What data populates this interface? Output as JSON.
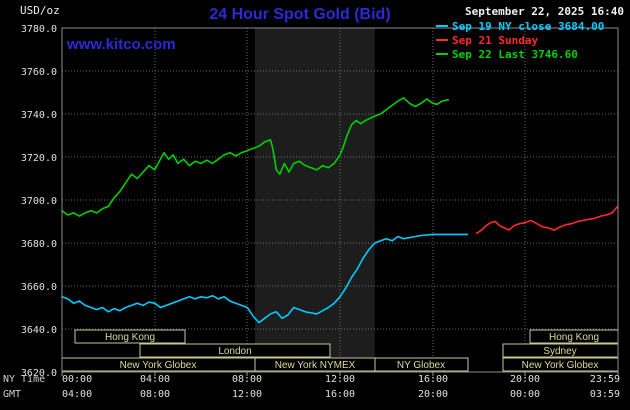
{
  "header": {
    "units_label": "USD/oz",
    "title": "24 Hour Spot Gold (Bid)",
    "datetime": "September 22, 2025 16:40",
    "watermark": "www.kitco.com"
  },
  "legend": [
    {
      "label": "Sep 19 NY close 3684.00",
      "color": "#00ccff"
    },
    {
      "label": "Sep 21 Sunday",
      "color": "#ff2a2a"
    },
    {
      "label": "Sep 22 Last 3746.60",
      "color": "#00d000"
    }
  ],
  "axes": {
    "y_labels": [
      "3780.0",
      "3760.0",
      "3740.0",
      "3720.0",
      "3700.0",
      "3680.0",
      "3660.0",
      "3640.0",
      "3620.0"
    ],
    "x_ny_labels": [
      "00:00",
      "04:00",
      "08:00",
      "12:00",
      "16:00",
      "20:00",
      "23:59"
    ],
    "x_gmt_labels": [
      "04:00",
      "08:00",
      "12:00",
      "16:00",
      "20:00",
      "00:00",
      "03:59"
    ],
    "ny_row_label": "NY Time",
    "gmt_row_label": "GMT"
  },
  "sessions": [
    {
      "label": "Hong Kong"
    },
    {
      "label": "Hong Kong"
    },
    {
      "label": "London"
    },
    {
      "label": "Sydney"
    },
    {
      "label": "New York Globex"
    },
    {
      "label": "New York NYMEX"
    },
    {
      "label": "NY Globex"
    },
    {
      "label": "New York Globex"
    }
  ],
  "chart_data": {
    "type": "line",
    "title": "24 Hour Spot Gold (Bid)",
    "ylabel": "USD/oz",
    "x_unit": "hours NY time",
    "x_range": [
      0,
      24
    ],
    "ylim": [
      3620,
      3780
    ],
    "y_tick_step": 20,
    "grid": true,
    "legend_position": "top-right",
    "highlight_band_hours": [
      8.33,
      13.5
    ],
    "series": [
      {
        "name": "Sep 19 NY close 3684.00",
        "color": "#00ccff",
        "x": [
          0,
          0.25,
          0.5,
          0.75,
          1,
          1.25,
          1.5,
          1.75,
          2,
          2.25,
          2.5,
          2.75,
          3,
          3.25,
          3.5,
          3.75,
          4,
          4.25,
          4.5,
          4.75,
          5,
          5.25,
          5.5,
          5.75,
          6,
          6.25,
          6.5,
          6.75,
          7,
          7.25,
          7.5,
          7.75,
          8,
          8.25,
          8.5,
          8.75,
          9,
          9.25,
          9.5,
          9.75,
          10,
          10.25,
          10.5,
          10.75,
          11,
          11.25,
          11.5,
          11.75,
          12,
          12.25,
          12.5,
          12.75,
          13,
          13.25,
          13.5,
          13.75,
          14,
          14.25,
          14.5,
          14.75,
          15,
          15.25,
          15.5,
          16,
          16.5,
          17,
          17.5
        ],
        "values": [
          3655,
          3654,
          3652,
          3653,
          3651,
          3650,
          3649,
          3650,
          3648,
          3649.5,
          3648.5,
          3650,
          3651,
          3652,
          3651,
          3652.5,
          3652,
          3650,
          3651,
          3652,
          3653,
          3654,
          3655,
          3654,
          3655,
          3654.5,
          3655.5,
          3654,
          3655,
          3653,
          3652,
          3651,
          3650,
          3646,
          3643,
          3645,
          3647,
          3648,
          3645,
          3646.5,
          3650,
          3649,
          3648,
          3647.5,
          3647,
          3648.5,
          3650,
          3652,
          3655,
          3659,
          3664,
          3668,
          3673,
          3677,
          3680,
          3681,
          3682,
          3681,
          3683,
          3682,
          3682.5,
          3683,
          3683.5,
          3684,
          3684,
          3684,
          3684
        ]
      },
      {
        "name": "Sep 21 Sunday",
        "color": "#ff2a2a",
        "x": [
          17.9,
          18.1,
          18.3,
          18.5,
          18.7,
          18.9,
          19.1,
          19.3,
          19.5,
          19.75,
          20,
          20.25,
          20.5,
          20.75,
          21,
          21.25,
          21.5,
          21.75,
          22,
          22.25,
          22.5,
          22.75,
          23,
          23.25,
          23.5,
          23.75,
          23.98
        ],
        "values": [
          3684.5,
          3686,
          3688,
          3689.5,
          3690,
          3688,
          3687,
          3686,
          3688,
          3689,
          3689.5,
          3690.5,
          3689,
          3687.5,
          3687,
          3686,
          3687.5,
          3688.5,
          3689,
          3690,
          3690.5,
          3691,
          3691.5,
          3692.5,
          3693,
          3694,
          3697
        ]
      },
      {
        "name": "Sep 22 Last 3746.60",
        "color": "#00d000",
        "x": [
          0,
          0.25,
          0.5,
          0.75,
          1,
          1.25,
          1.5,
          1.75,
          2,
          2.25,
          2.5,
          2.75,
          3,
          3.25,
          3.5,
          3.75,
          4,
          4.2,
          4.4,
          4.6,
          4.8,
          5,
          5.25,
          5.5,
          5.75,
          6,
          6.25,
          6.5,
          6.75,
          7,
          7.25,
          7.5,
          7.75,
          8,
          8.25,
          8.5,
          8.75,
          9,
          9.1,
          9.25,
          9.4,
          9.6,
          9.8,
          10,
          10.25,
          10.5,
          10.75,
          11,
          11.25,
          11.5,
          11.75,
          12,
          12.15,
          12.3,
          12.5,
          12.7,
          12.9,
          13.1,
          13.3,
          13.5,
          13.75,
          14,
          14.25,
          14.5,
          14.75,
          15,
          15.25,
          15.5,
          15.75,
          16,
          16.2,
          16.4,
          16.67
        ],
        "values": [
          3695,
          3693,
          3694,
          3692.5,
          3694,
          3695,
          3694,
          3696,
          3697,
          3701,
          3704,
          3708,
          3712,
          3710,
          3713,
          3716,
          3714,
          3718,
          3722,
          3719,
          3721,
          3717,
          3719,
          3716,
          3718,
          3717,
          3718.5,
          3717,
          3719,
          3721,
          3722,
          3720.5,
          3722,
          3723,
          3724,
          3725,
          3727,
          3728,
          3724,
          3714,
          3712,
          3717,
          3713,
          3717,
          3718,
          3716,
          3715,
          3714,
          3716,
          3715,
          3717,
          3721,
          3725,
          3730,
          3735,
          3737,
          3735.5,
          3737,
          3738,
          3739,
          3740,
          3742,
          3744,
          3746,
          3747.5,
          3745,
          3743.5,
          3745,
          3747,
          3745,
          3744.5,
          3746,
          3746.6
        ]
      }
    ]
  }
}
